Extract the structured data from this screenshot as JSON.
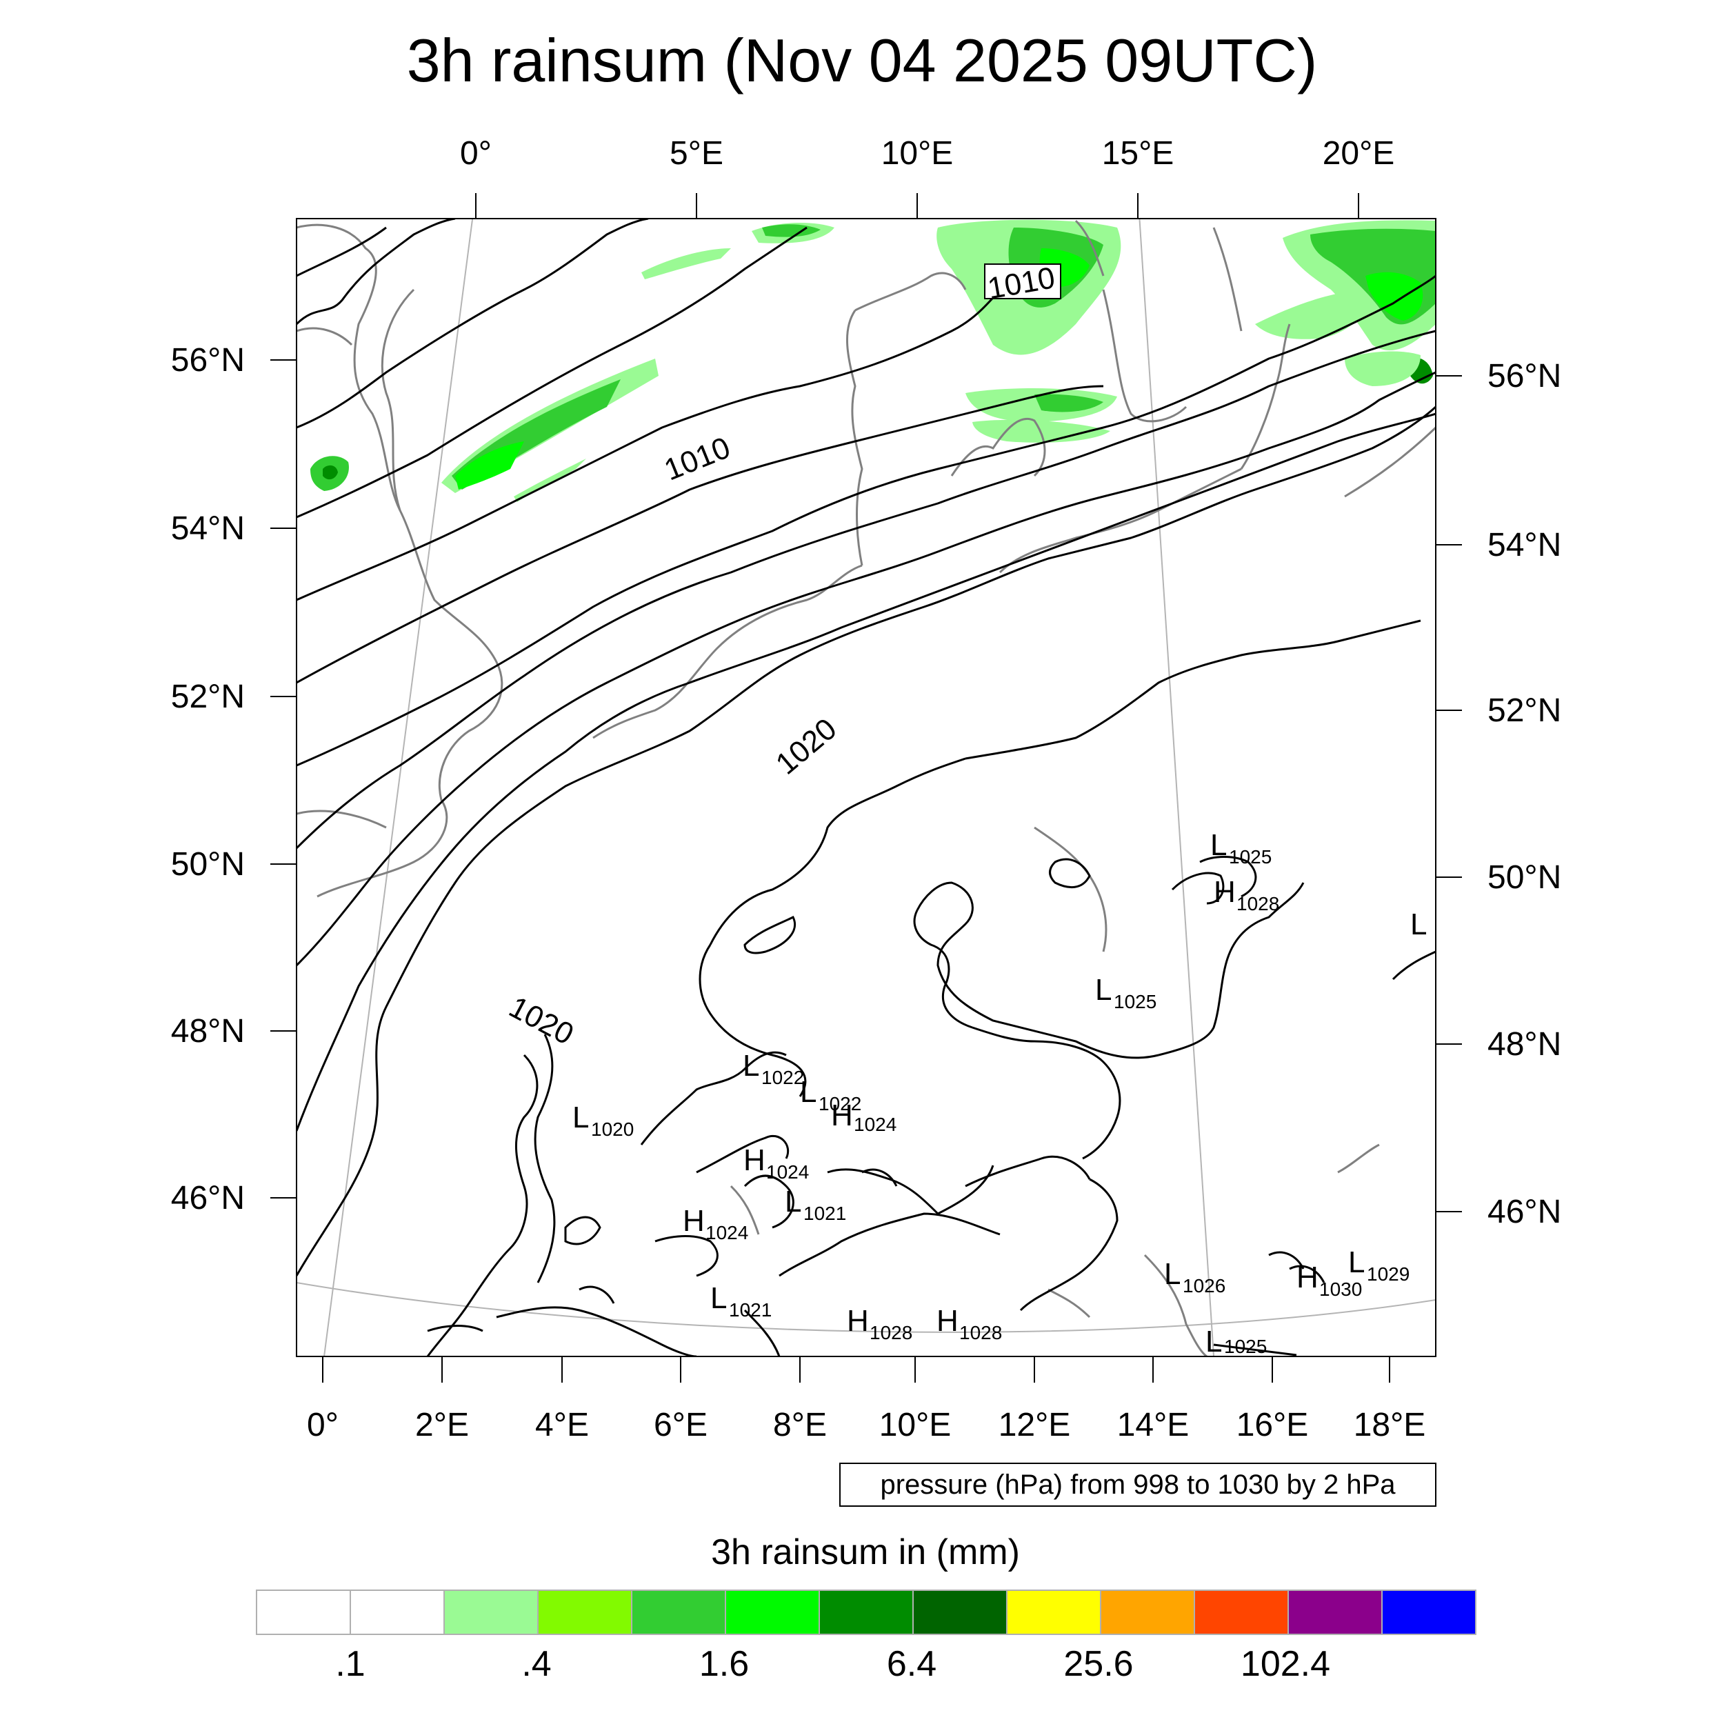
{
  "title": "3h rainsum (Nov 04 2025 09UTC)",
  "top_lon_ticks": [
    "0°",
    "5°E",
    "10°E",
    "15°E",
    "20°E"
  ],
  "bottom_lon_ticks": [
    "0°",
    "2°E",
    "4°E",
    "6°E",
    "8°E",
    "10°E",
    "12°E",
    "14°E",
    "16°E",
    "18°E"
  ],
  "left_lat_ticks": [
    "56°N",
    "54°N",
    "52°N",
    "50°N",
    "48°N",
    "46°N"
  ],
  "right_lat_ticks": [
    "56°N",
    "54°N",
    "52°N",
    "50°N",
    "48°N",
    "46°N"
  ],
  "contour_note": "pressure (hPa) from 998 to 1030 by 2 hPa",
  "contour_labels": [
    "1010",
    "1010",
    "1020",
    "1020"
  ],
  "pressure_centers": [
    {
      "type": "L",
      "value": "1025"
    },
    {
      "type": "H",
      "value": "1028"
    },
    {
      "type": "L",
      "value": ""
    },
    {
      "type": "L",
      "value": "1025"
    },
    {
      "type": "L",
      "value": "1022"
    },
    {
      "type": "L",
      "value": "1022"
    },
    {
      "type": "H",
      "value": "1024"
    },
    {
      "type": "L",
      "value": "1020"
    },
    {
      "type": "H",
      "value": "1024"
    },
    {
      "type": "L",
      "value": "1021"
    },
    {
      "type": "H",
      "value": "1024"
    },
    {
      "type": "L",
      "value": "1021"
    },
    {
      "type": "H",
      "value": "1028"
    },
    {
      "type": "H",
      "value": "1028"
    },
    {
      "type": "L",
      "value": "1026"
    },
    {
      "type": "H",
      "value": "1030"
    },
    {
      "type": "L",
      "value": "1029"
    },
    {
      "type": "L",
      "value": "1025"
    }
  ],
  "colorbar": {
    "title": "3h rainsum in (mm)",
    "colors": [
      "#ffffff",
      "#ffffff",
      "#9afa94",
      "#82fa00",
      "#32cd32",
      "#00fa00",
      "#008c00",
      "#006400",
      "#ffff00",
      "#ffa500",
      "#ff4500",
      "#8b008b",
      "#0000ff"
    ],
    "labels": [
      ".1",
      ".4",
      "1.6",
      "6.4",
      "25.6",
      "102.4"
    ]
  },
  "rain_colors": {
    "light": "#9afa94",
    "mid": "#32cd32",
    "bright": "#00fa00",
    "dark": "#008c00"
  }
}
